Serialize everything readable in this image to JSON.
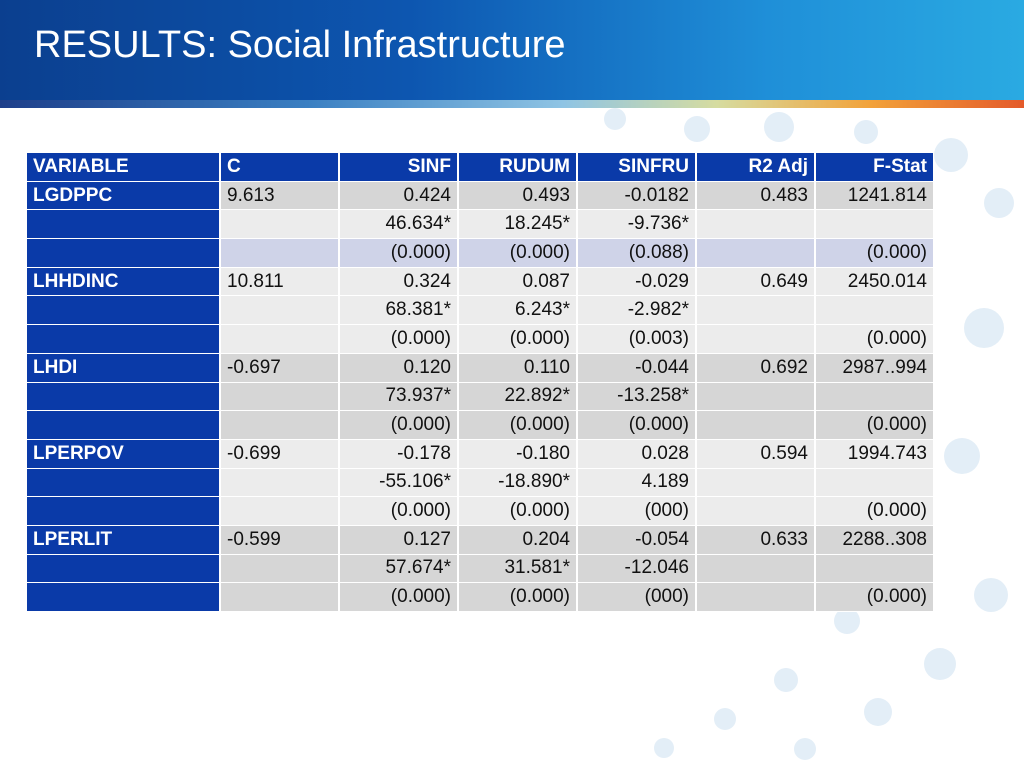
{
  "title": "RESULTS: Social Infrastructure",
  "table": {
    "headers": [
      "VARIABLE",
      "C",
      "SINF",
      "RUDUM",
      "SINFRU",
      "R2 Adj",
      "F-Stat"
    ],
    "rows": [
      [
        "LGDPPC",
        "9.613",
        "0.424",
        "0.493",
        "-0.0182",
        "0.483",
        "1241.814"
      ],
      [
        "",
        "",
        "46.634*",
        "18.245*",
        "-9.736*",
        "",
        ""
      ],
      [
        "",
        "",
        "(0.000)",
        "(0.000)",
        "(0.088)",
        "",
        "(0.000)"
      ],
      [
        "LHHDINC",
        "10.811",
        "0.324",
        "0.087",
        "-0.029",
        "0.649",
        "2450.014"
      ],
      [
        "",
        "",
        "68.381*",
        "6.243*",
        "-2.982*",
        "",
        ""
      ],
      [
        "",
        "",
        "(0.000)",
        "(0.000)",
        "(0.003)",
        "",
        "(0.000)"
      ],
      [
        "LHDI",
        "-0.697",
        "0.120",
        "0.110",
        "-0.044",
        "0.692",
        "2987..994"
      ],
      [
        "",
        "",
        "73.937*",
        "22.892*",
        "-13.258*",
        "",
        ""
      ],
      [
        "",
        "",
        "(0.000)",
        "(0.000)",
        "(0.000)",
        "",
        "(0.000)"
      ],
      [
        "LPERPOV",
        "-0.699",
        "-0.178",
        "-0.180",
        "0.028",
        "0.594",
        "1994.743"
      ],
      [
        "",
        "",
        "-55.106*",
        "-18.890*",
        "4.189",
        "",
        ""
      ],
      [
        "",
        "",
        "(0.000)",
        "(0.000)",
        "(000)",
        "",
        "(0.000)"
      ],
      [
        "LPERLIT",
        "-0.599",
        "0.127",
        "0.204",
        "-0.054",
        "0.633",
        "2288..308"
      ],
      [
        "",
        "",
        "57.674*",
        "31.581*",
        "-12.046",
        "",
        ""
      ],
      [
        "",
        "",
        "(0.000)",
        "(0.000)",
        "(000)",
        "",
        "(0.000)"
      ]
    ]
  }
}
